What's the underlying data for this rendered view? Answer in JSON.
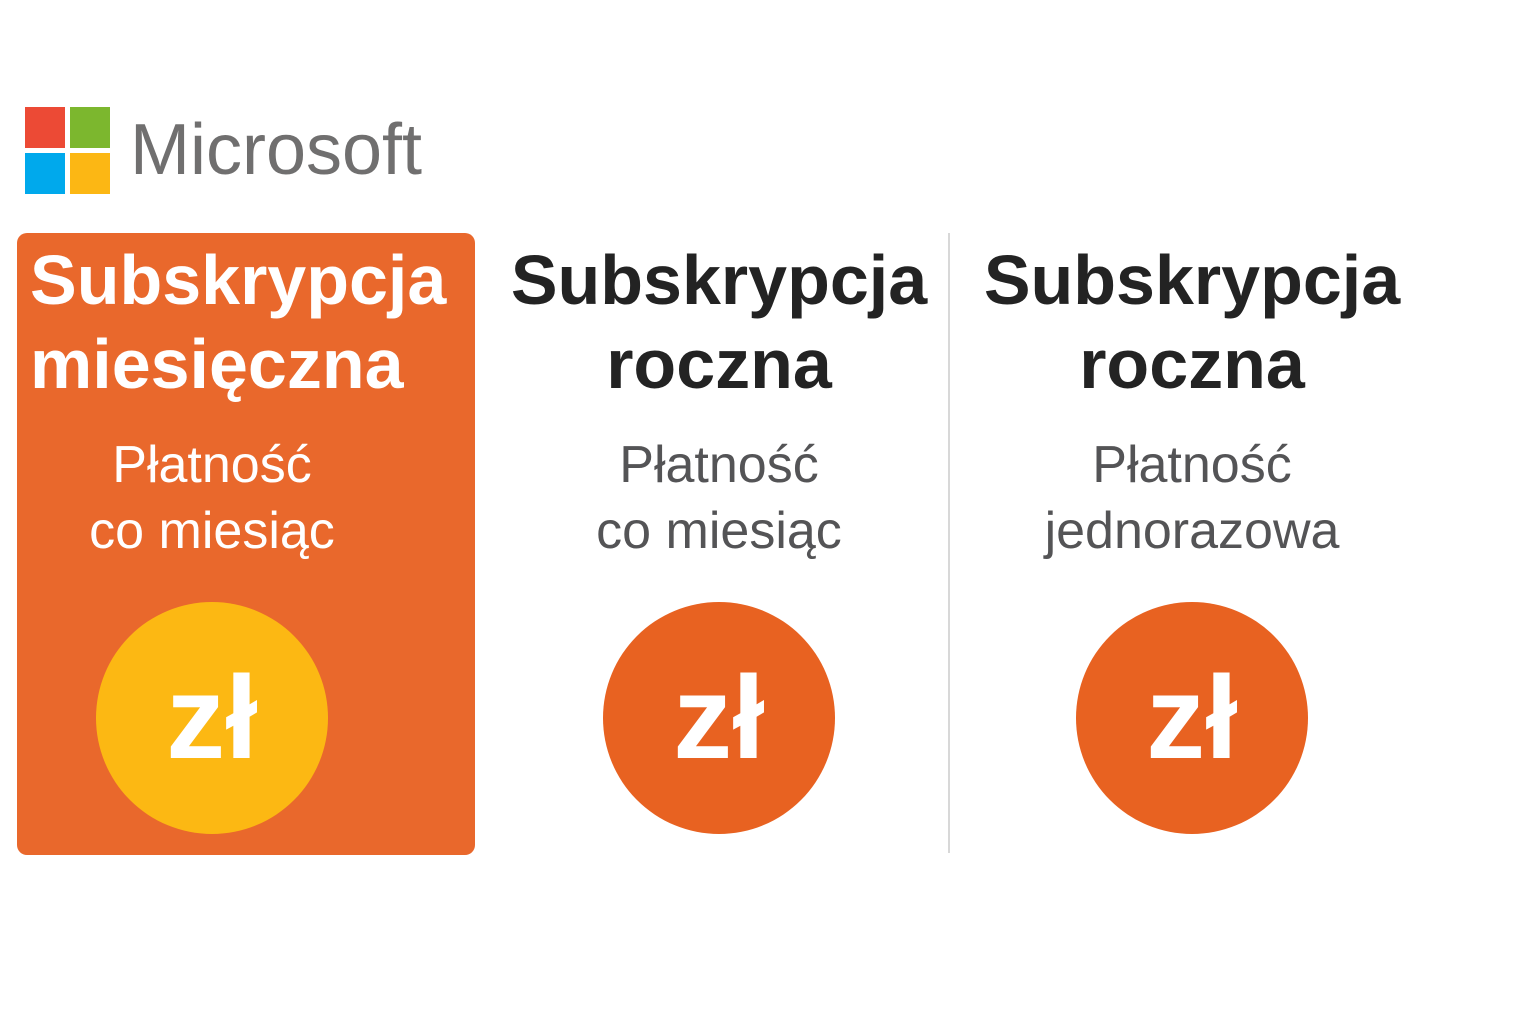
{
  "brand": {
    "wordmark": "Microsoft",
    "wordmark_color": "#706F6F",
    "logo_squares": [
      {
        "name": "red-square",
        "color": "#EC4A35"
      },
      {
        "name": "green-square",
        "color": "#7CB72E"
      },
      {
        "name": "blue-square",
        "color": "#00A9EC"
      },
      {
        "name": "yellow-square",
        "color": "#FCB714"
      }
    ]
  },
  "colors": {
    "highlight_card_orange": "#E9682C",
    "badge_orange": "#E86221",
    "badge_yellow": "#FCB813",
    "title_dark": "#232323",
    "subtitle_gray": "#545456",
    "divider_gray": "#D8D8D8",
    "card_text_white": "#FFFFFF"
  },
  "plans": [
    {
      "id": "subskrypcja-miesieczna",
      "highlighted": true,
      "title_lines": [
        "Subskrypcja",
        "miesięczna"
      ],
      "subtitle_lines": [
        "Płatność",
        "co miesiąc"
      ],
      "currency_symbol": "zł",
      "badge_color": "#FCB813",
      "card_color": "#E9682C"
    },
    {
      "id": "subskrypcja-roczna-platnosc-co-miesiac",
      "highlighted": false,
      "title_lines": [
        "Subskrypcja",
        "roczna"
      ],
      "subtitle_lines": [
        "Płatność",
        "co miesiąc"
      ],
      "currency_symbol": "zł",
      "badge_color": "#E86221"
    },
    {
      "id": "subskrypcja-roczna-platnosc-jednorazowa",
      "highlighted": false,
      "title_lines": [
        "Subskrypcja",
        "roczna"
      ],
      "subtitle_lines": [
        "Płatność",
        "jednorazowa"
      ],
      "currency_symbol": "zł",
      "badge_color": "#E86221"
    }
  ]
}
